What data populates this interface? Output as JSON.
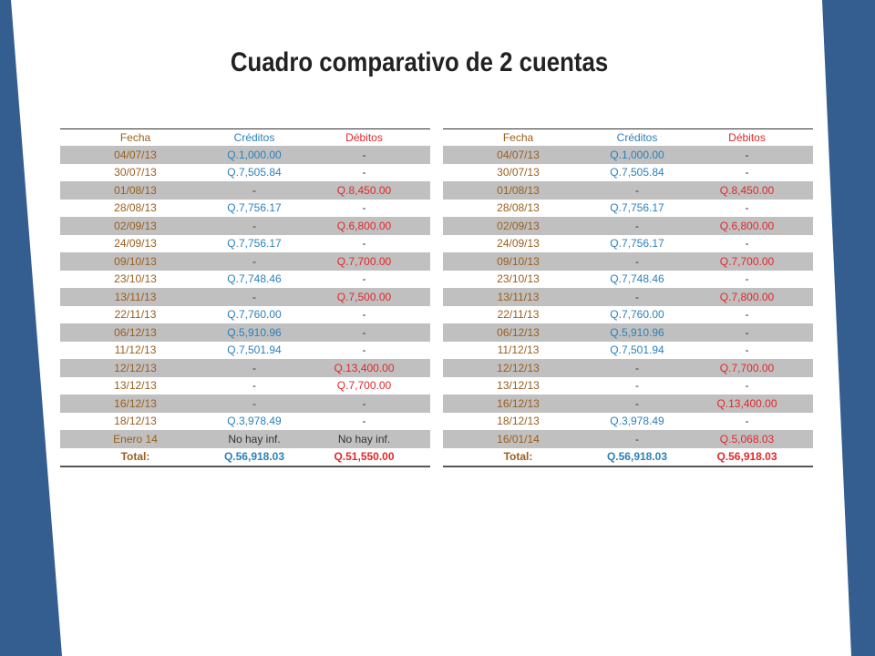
{
  "title": "Cuadro comparativo de 2 cuentas",
  "colors": {
    "band": "#345d90",
    "fecha": "#9a5e1c",
    "creditos": "#2b80b9",
    "debitos": "#e0282a",
    "stripe": "#c0c0c0"
  },
  "tables": [
    {
      "headers": [
        "Fecha",
        "Créditos",
        "Débitos"
      ],
      "rows": [
        [
          "04/07/13",
          "Q.1,000.00",
          "-"
        ],
        [
          "30/07/13",
          "Q.7,505.84",
          "-"
        ],
        [
          "01/08/13",
          "-",
          "Q.8,450.00"
        ],
        [
          "28/08/13",
          "Q.7,756.17",
          "-"
        ],
        [
          "02/09/13",
          "-",
          "Q.6,800.00"
        ],
        [
          "24/09/13",
          "Q.7,756.17",
          "-"
        ],
        [
          "09/10/13",
          "-",
          "Q.7,700.00"
        ],
        [
          "23/10/13",
          "Q.7,748.46",
          "-"
        ],
        [
          "13/11/13",
          "-",
          "Q.7,500.00"
        ],
        [
          "22/11/13",
          "Q.7,760.00",
          "-"
        ],
        [
          "06/12/13",
          "Q.5,910.96",
          "-"
        ],
        [
          "11/12/13",
          "Q.7,501.94",
          "-"
        ],
        [
          "12/12/13",
          "-",
          "Q.13,400.00"
        ],
        [
          "13/12/13",
          "-",
          "Q.7,700.00"
        ],
        [
          "16/12/13",
          "-",
          "-"
        ],
        [
          "18/12/13",
          "Q.3,978.49",
          "-"
        ],
        [
          "Enero 14",
          "No hay inf.",
          "No hay inf."
        ]
      ],
      "total": [
        "Total:",
        "Q.56,918.03",
        "Q.51,550.00"
      ]
    },
    {
      "headers": [
        "Fecha",
        "Créditos",
        "Débitos"
      ],
      "rows": [
        [
          "04/07/13",
          "Q.1,000.00",
          "-"
        ],
        [
          "30/07/13",
          "Q.7,505.84",
          "-"
        ],
        [
          "01/08/13",
          "-",
          "Q.8,450.00"
        ],
        [
          "28/08/13",
          "Q.7,756.17",
          "-"
        ],
        [
          "02/09/13",
          "-",
          "Q.6,800.00"
        ],
        [
          "24/09/13",
          "Q.7,756.17",
          "-"
        ],
        [
          "09/10/13",
          "-",
          "Q.7,700.00"
        ],
        [
          "23/10/13",
          "Q.7,748.46",
          "-"
        ],
        [
          "13/11/13",
          "-",
          "Q.7,800.00"
        ],
        [
          "22/11/13",
          "Q.7,760.00",
          "-"
        ],
        [
          "06/12/13",
          "Q.5,910.96",
          "-"
        ],
        [
          "11/12/13",
          "Q.7,501.94",
          "-"
        ],
        [
          "12/12/13",
          "-",
          "Q.7,700.00"
        ],
        [
          "13/12/13",
          "-",
          "-"
        ],
        [
          "16/12/13",
          "-",
          "Q.13,400.00"
        ],
        [
          "18/12/13",
          "Q.3,978.49",
          "-"
        ],
        [
          "16/01/14",
          "-",
          "Q.5,068.03"
        ]
      ],
      "total": [
        "Total:",
        "Q.56,918.03",
        "Q.56,918.03"
      ]
    }
  ]
}
